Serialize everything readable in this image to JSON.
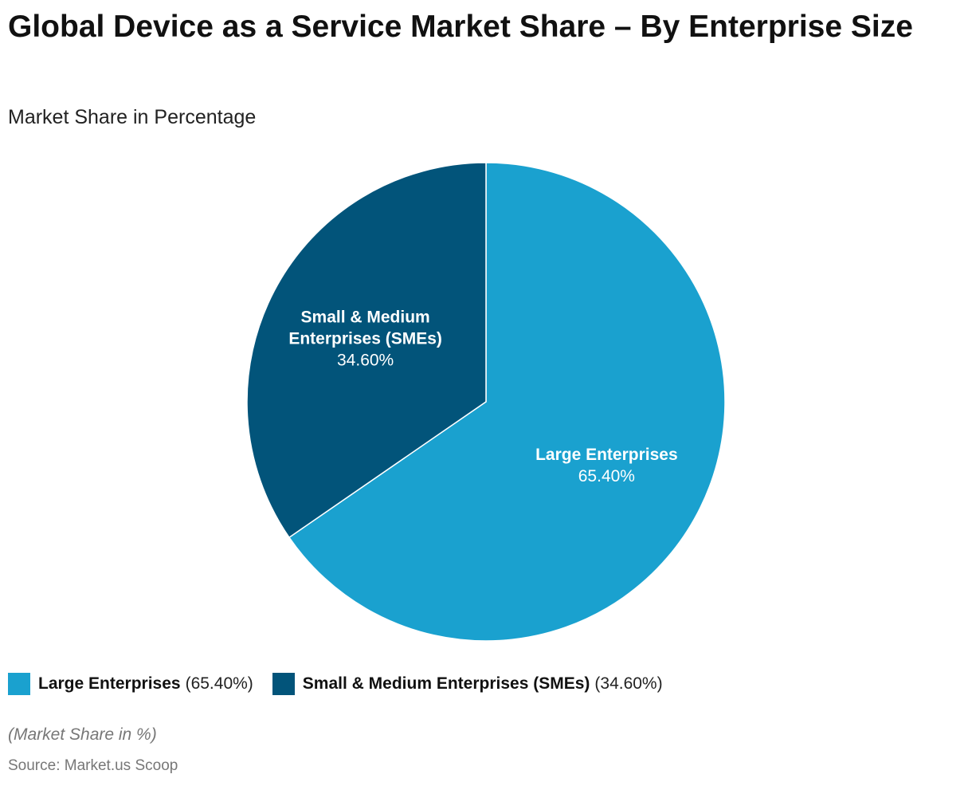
{
  "chart_data": {
    "type": "pie",
    "title": "Global Device as a Service Market Share – By Enterprise Size",
    "subtitle": "Market Share in Percentage",
    "slices": [
      {
        "name": "Large Enterprises",
        "label_lines": [
          "Large Enterprises"
        ],
        "value": 65.4,
        "value_label": "65.40%",
        "legend_value": "(65.40%)",
        "color": "#1aa1cf"
      },
      {
        "name": "Small & Medium Enterprises (SMEs)",
        "label_lines": [
          "Small & Medium",
          "Enterprises (SMEs)"
        ],
        "value": 34.6,
        "value_label": "34.60%",
        "legend_value": "(34.60%)",
        "color": "#02547a"
      }
    ],
    "legend_position": "bottom-left",
    "note": "(Market Share in %)",
    "source": "Source: Market.us Scoop"
  }
}
